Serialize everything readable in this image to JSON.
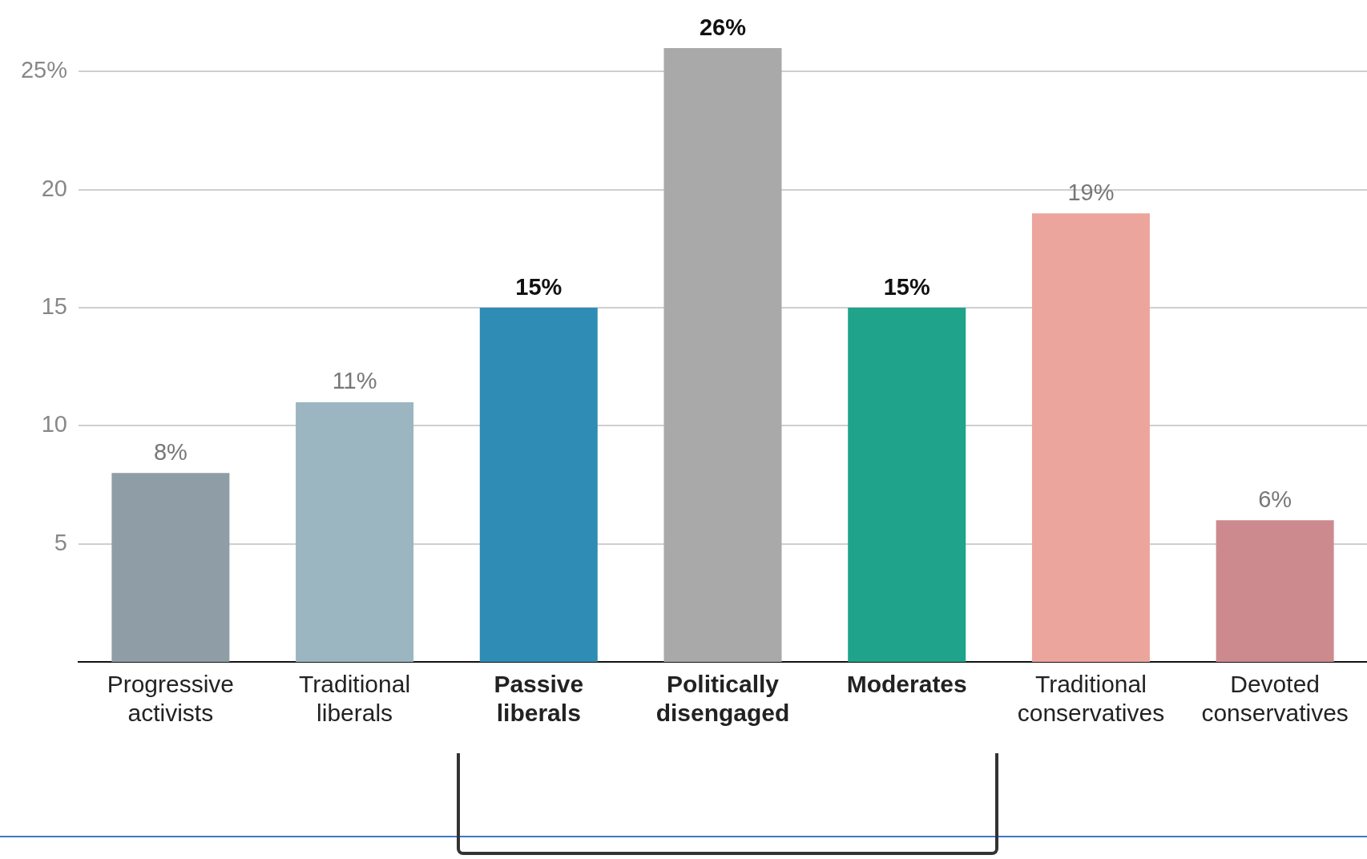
{
  "chart_data": {
    "type": "bar",
    "categories": [
      "Progressive activists",
      "Traditional liberals",
      "Passive liberals",
      "Politically disengaged",
      "Moderates",
      "Traditional conservatives",
      "Devoted conservatives"
    ],
    "values": [
      8,
      11,
      15,
      26,
      15,
      19,
      6
    ],
    "colors": [
      "#8f9ea6",
      "#9bb6c1",
      "#2f8db5",
      "#a9a9a9",
      "#1fa38a",
      "#eca59c",
      "#cd8a8e"
    ],
    "value_labels": [
      "8%",
      "11%",
      "15%",
      "26%",
      "15%",
      "19%",
      "6%"
    ],
    "ylim": [
      0,
      26
    ],
    "yticks": [
      5,
      10,
      15,
      20,
      {
        "value": 25,
        "label": "25%"
      }
    ],
    "grid": "y",
    "legend": false
  }
}
